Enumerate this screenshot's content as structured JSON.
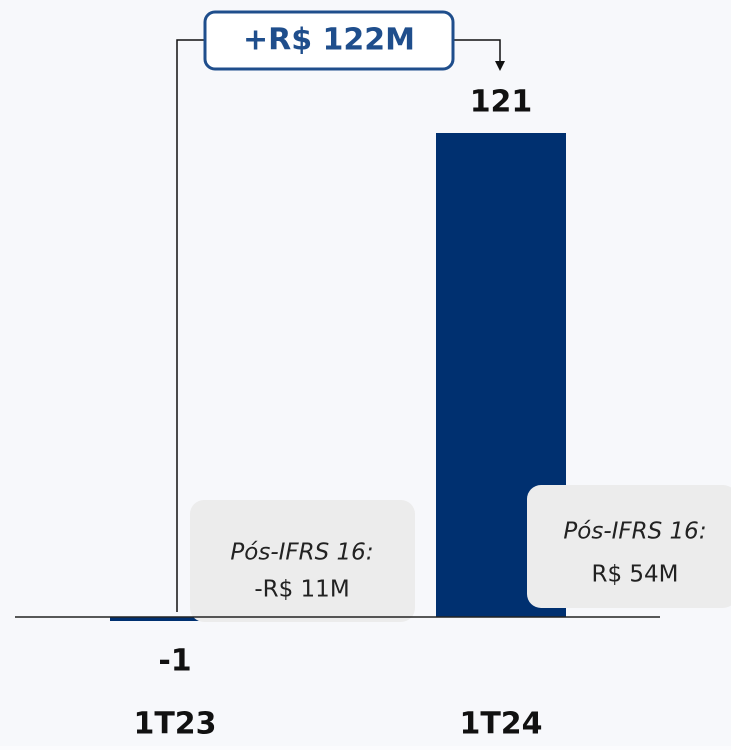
{
  "chart_data": {
    "type": "bar",
    "categories": [
      "1T23",
      "1T24"
    ],
    "values": [
      -1,
      121
    ],
    "color": "#003070",
    "annotation": "+R$ 122M",
    "notes": [
      {
        "title": "Pós-IFRS 16:",
        "value": "-R$ 11M"
      },
      {
        "title": "Pós-IFRS 16:",
        "value": "R$ 54M"
      }
    ]
  }
}
